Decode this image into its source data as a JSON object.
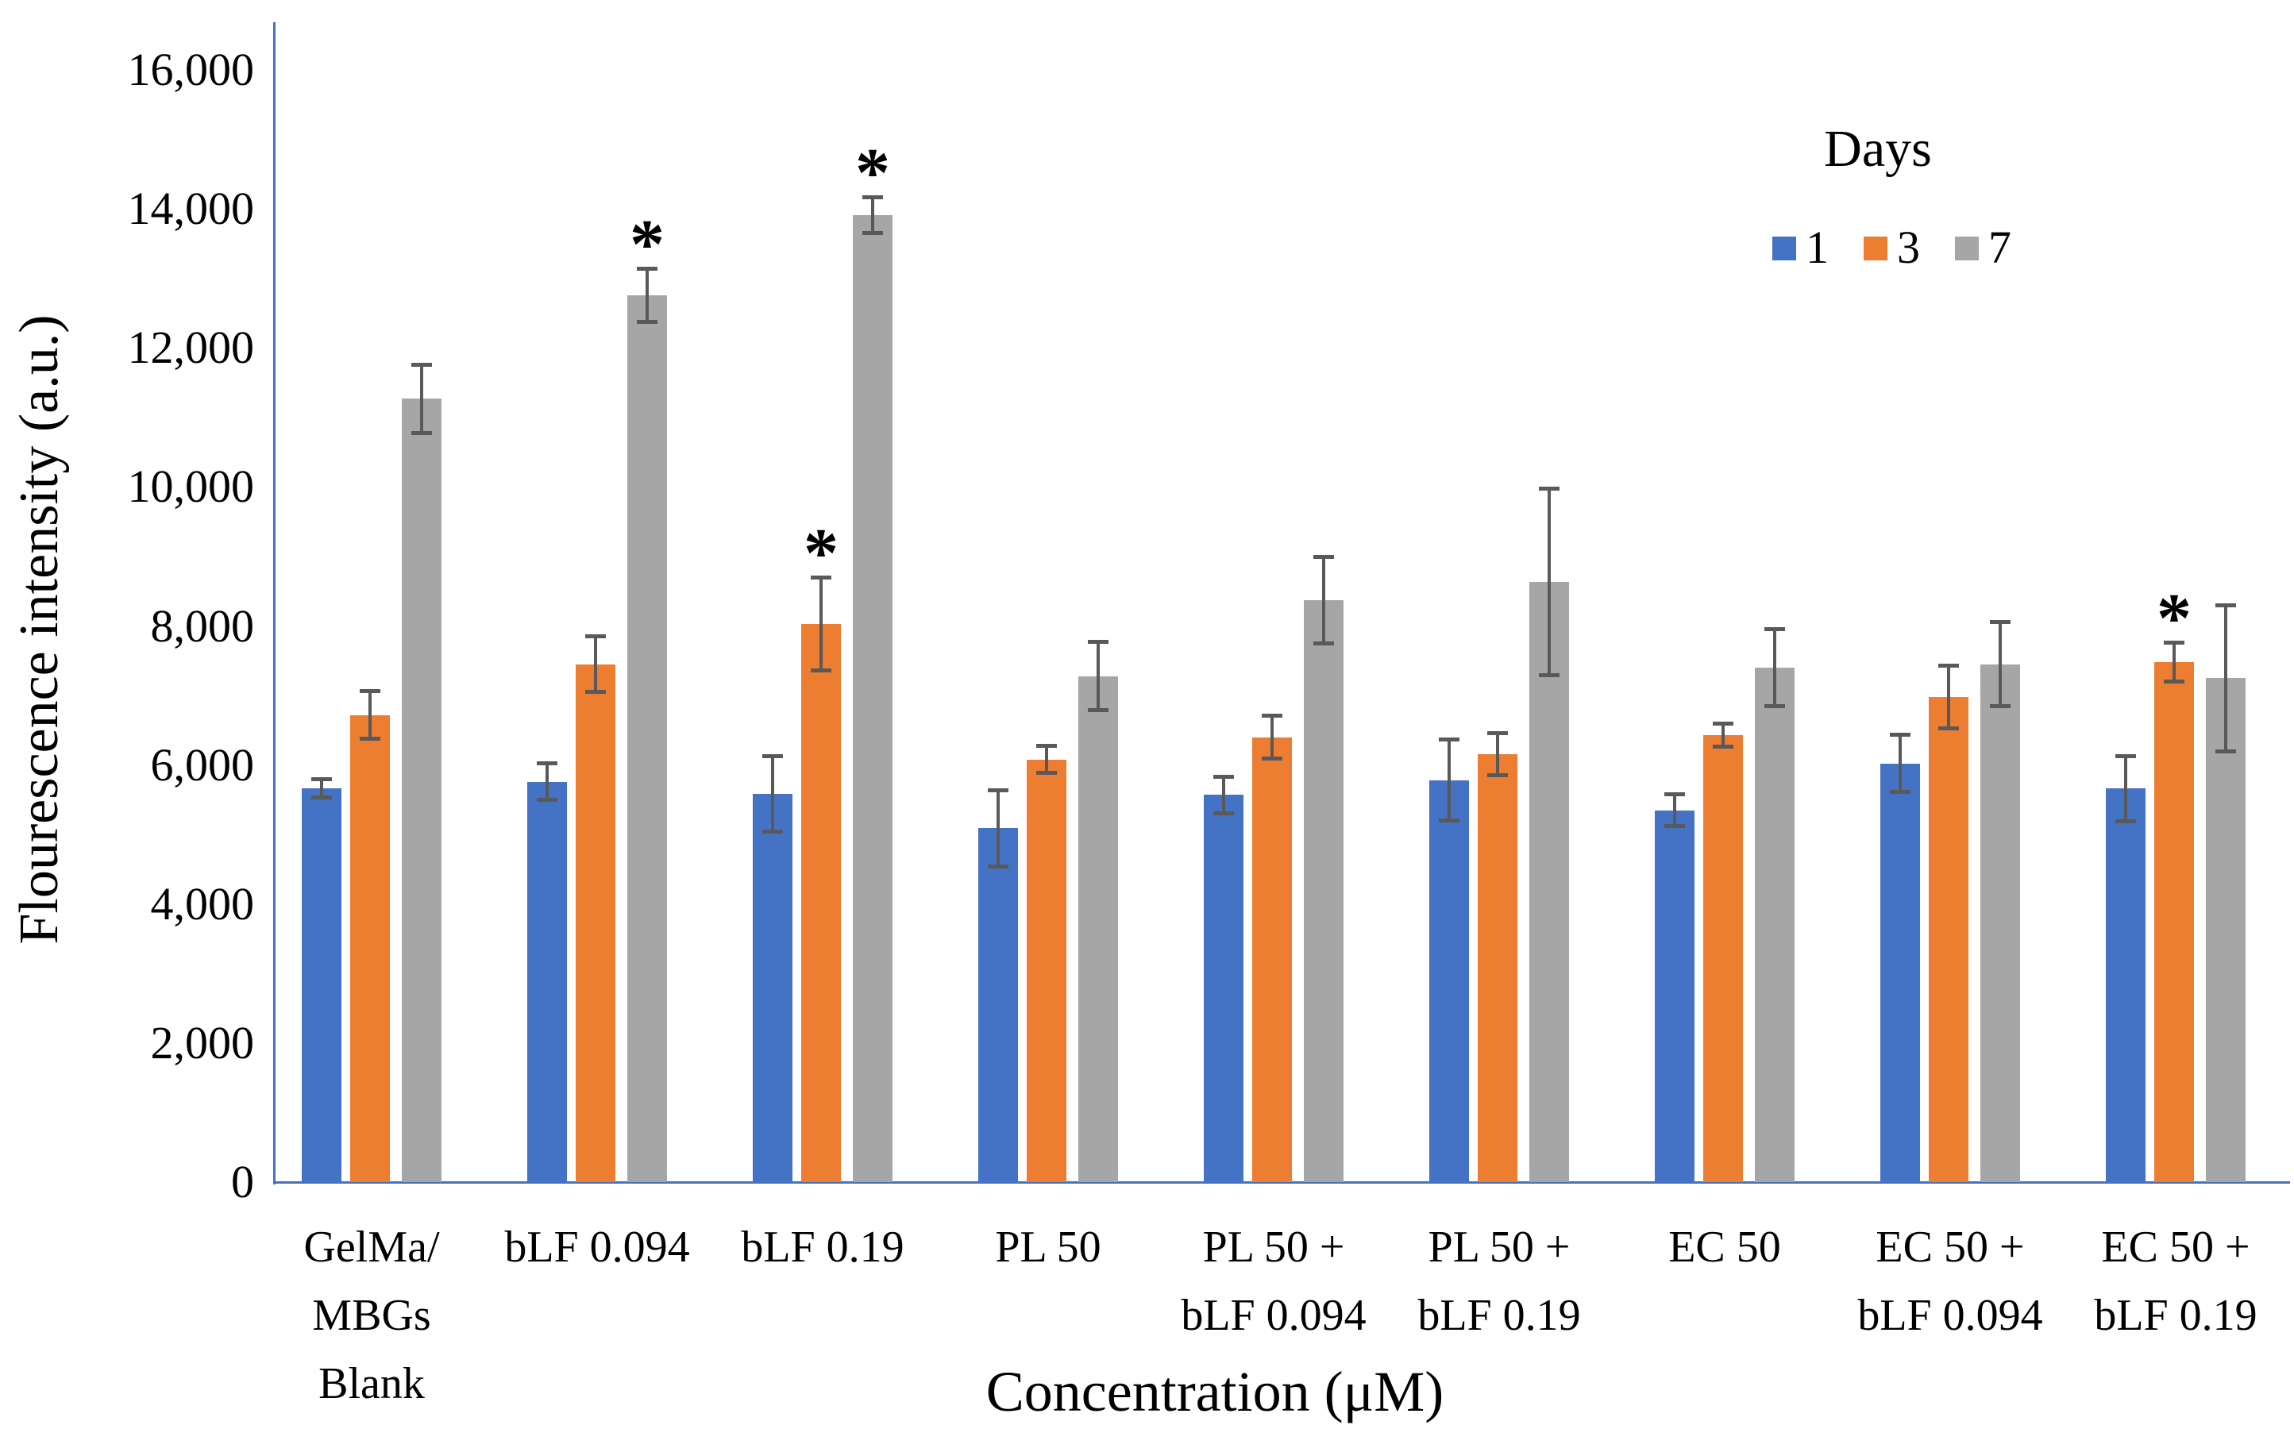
{
  "y_axis": {
    "title": "Flourescence intensity (a.u.)",
    "tick_labels": [
      "0",
      "2,000",
      "4,000",
      "6,000",
      "8,000",
      "10,000",
      "12,000",
      "14,000",
      "16,000"
    ],
    "tick_values": [
      0,
      2000,
      4000,
      6000,
      8000,
      10000,
      12000,
      14000,
      16000
    ],
    "max": 16000
  },
  "x_axis": {
    "title": "Concentration (μM)"
  },
  "legend": {
    "title": "Days",
    "entries": [
      {
        "label": "1",
        "color": "#4472C4"
      },
      {
        "label": "3",
        "color": "#ED7D31"
      },
      {
        "label": "7",
        "color": "#A6A6A6"
      }
    ]
  },
  "colors": {
    "day1": "#4472C4",
    "day3": "#ED7D31",
    "day7": "#A6A6A6",
    "error_bar": "#595959",
    "axis": "#4472C4",
    "text": "#000000",
    "background": "#ffffff"
  },
  "significance_marker": "*",
  "chart_data": {
    "type": "bar",
    "title": "",
    "xlabel": "Concentration (μM)",
    "ylabel": "Flourescence intensity (a.u.)",
    "ylim": [
      0,
      16000
    ],
    "grid": false,
    "legend_position": "top-right",
    "categories": [
      "GelMa/ MBGs Blank",
      "bLF 0.094",
      "bLF 0.19",
      "PL 50",
      "PL 50 + bLF 0.094",
      "PL 50 + bLF 0.19",
      "EC 50",
      "EC 50 + bLF 0.094",
      "EC 50 + bLF 0.19"
    ],
    "category_label_lines": [
      [
        "GelMa/",
        "MBGs",
        "Blank"
      ],
      [
        "bLF 0.094"
      ],
      [
        "bLF 0.19"
      ],
      [
        "PL 50"
      ],
      [
        "PL 50 +",
        "bLF 0.094"
      ],
      [
        "PL 50 +",
        "bLF 0.19"
      ],
      [
        "EC 50"
      ],
      [
        "EC 50 +",
        "bLF 0.094"
      ],
      [
        "EC 50 +",
        "bLF 0.19"
      ]
    ],
    "series": [
      {
        "name": "1",
        "color": "#4472C4",
        "values": [
          5660,
          5760,
          5580,
          5090,
          5570,
          5780,
          5350,
          6020,
          5660
        ],
        "errors": [
          160,
          290,
          570,
          580,
          290,
          610,
          260,
          440,
          500
        ],
        "significant": [
          false,
          false,
          false,
          false,
          false,
          false,
          false,
          false,
          false
        ]
      },
      {
        "name": "3",
        "color": "#ED7D31",
        "values": [
          6720,
          7450,
          8030,
          6080,
          6400,
          6160,
          6430,
          6980,
          7480
        ],
        "errors": [
          370,
          430,
          700,
          220,
          340,
          330,
          190,
          480,
          310
        ],
        "significant": [
          false,
          false,
          true,
          false,
          false,
          false,
          false,
          false,
          true
        ]
      },
      {
        "name": "7",
        "color": "#A6A6A6",
        "values": [
          11270,
          12760,
          13910,
          7280,
          8370,
          8630,
          7400,
          7450,
          7250
        ],
        "errors": [
          520,
          410,
          280,
          520,
          650,
          1370,
          580,
          630,
          1080
        ],
        "significant": [
          false,
          true,
          true,
          false,
          false,
          false,
          false,
          false,
          false
        ]
      }
    ]
  }
}
